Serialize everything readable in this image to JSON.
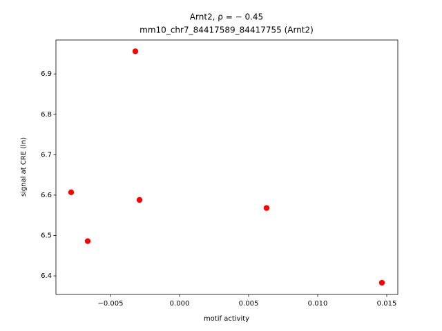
{
  "chart_data": {
    "type": "scatter",
    "title": "Arnt2, ρ = − 0.45",
    "subtitle": "mm10_chr7_84417589_84417755 (Arnt2)",
    "x_label": "motif activity",
    "y_label": "signal at CRE (ln)",
    "color": "#ff0000",
    "x": [
      -0.00785,
      -0.00665,
      -0.0032,
      -0.0029,
      0.0063,
      0.01465
    ],
    "values": [
      6.607,
      6.486,
      6.956,
      6.588,
      6.568,
      6.383
    ],
    "xlim": [
      -0.00895,
      0.0158
    ],
    "ylim": [
      6.354,
      6.984
    ],
    "xticks": [
      {
        "value": -0.005,
        "label": "−0.005"
      },
      {
        "value": 0,
        "label": "0.000"
      },
      {
        "value": 0.005,
        "label": "0.005"
      },
      {
        "value": 0.01,
        "label": "0.010"
      },
      {
        "value": 0.015,
        "label": "0.015"
      }
    ],
    "yticks": [
      6.4,
      6.5,
      6.6,
      6.7,
      6.8,
      6.9
    ],
    "grid": false
  }
}
